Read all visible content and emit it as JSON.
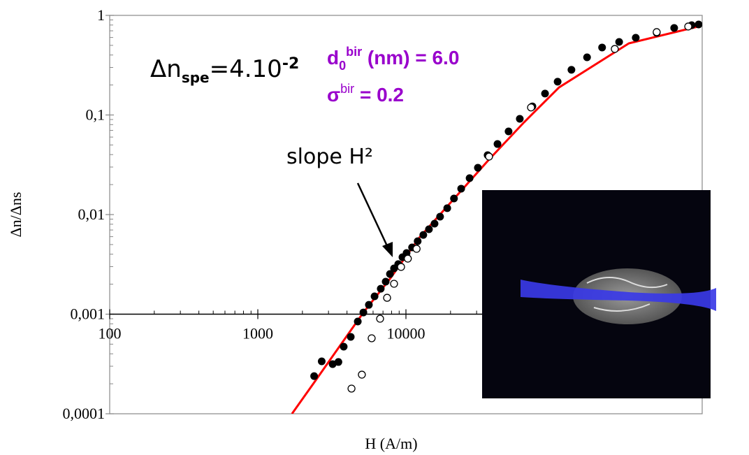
{
  "chart_data": {
    "type": "scatter",
    "xlabel": "H (A/m)",
    "ylabel": "Δn/Δns",
    "xscale": "log",
    "yscale": "log",
    "xlim": [
      100,
      1000000
    ],
    "ylim": [
      0.0001,
      1
    ],
    "xticks": [
      100,
      1000,
      10000
    ],
    "yticks": [
      {
        "value": 0.0001,
        "label": "0,0001"
      },
      {
        "value": 0.001,
        "label": "0,001"
      },
      {
        "value": 0.01,
        "label": "0,01"
      },
      {
        "value": 0.1,
        "label": "0,1"
      },
      1
    ],
    "x_axis_at": 0.001,
    "series": [
      {
        "style": "filled",
        "color": "#000000",
        "x": [
          2400,
          2700,
          3200,
          3500,
          3800,
          4240,
          4730,
          5160,
          5620,
          6140,
          6760,
          7300,
          7800,
          8310,
          8870,
          9470,
          10100,
          11000,
          12000,
          13100,
          14300,
          15600,
          17000,
          19000,
          21100,
          23600,
          26900,
          30600,
          35600,
          41500,
          49300,
          58700,
          71400,
          86900,
          105700,
          131000,
          167000,
          211000,
          275000,
          356000,
          493000,
          647000,
          849000,
          946000
        ],
        "values": [
          0.000239,
          0.000336,
          0.000315,
          0.000331,
          0.000472,
          0.000592,
          0.000844,
          0.00104,
          0.00124,
          0.00151,
          0.0018,
          0.00212,
          0.00253,
          0.00288,
          0.00318,
          0.00373,
          0.00411,
          0.00468,
          0.0054,
          0.00625,
          0.00712,
          0.0081,
          0.00952,
          0.0116,
          0.0145,
          0.0182,
          0.0232,
          0.0295,
          0.0395,
          0.0511,
          0.0684,
          0.0915,
          0.122,
          0.164,
          0.216,
          0.284,
          0.379,
          0.476,
          0.541,
          0.596,
          0.668,
          0.748,
          0.798,
          0.811
        ]
      },
      {
        "style": "open",
        "color": "#000000",
        "x": [
          4290,
          5040,
          5870,
          6690,
          7460,
          8310,
          9270,
          10300,
          11800,
          36400,
          69900,
          257000,
          493000,
          805000
        ],
        "values": [
          0.000179,
          0.000247,
          0.000573,
          0.0009,
          0.00146,
          0.00202,
          0.00298,
          0.00361,
          0.00453,
          0.0382,
          0.119,
          0.46,
          0.679,
          0.773
        ]
      },
      {
        "style": "line",
        "color": "#ff0000",
        "x": [
          1700,
          2410,
          5160,
          7800,
          12300,
          36400,
          62700,
          108000,
          320000,
          979000
        ],
        "values": [
          0.0001,
          0.000208,
          0.00104,
          0.00226,
          0.00586,
          0.0358,
          0.0844,
          0.189,
          0.524,
          0.785
        ]
      }
    ],
    "annotations": {
      "delta": {
        "base": "Δn",
        "sub": "spe",
        "text": "=4.10",
        "sup": "-2"
      },
      "d0": {
        "base": "d",
        "sub": "0",
        "sup": "bir",
        "text": " (nm) = 6.0"
      },
      "sigma": {
        "base": "σ",
        "sup": "bir",
        "text": " = 0.2"
      },
      "param_color": "#9900cc",
      "slope": "slope H²"
    }
  }
}
